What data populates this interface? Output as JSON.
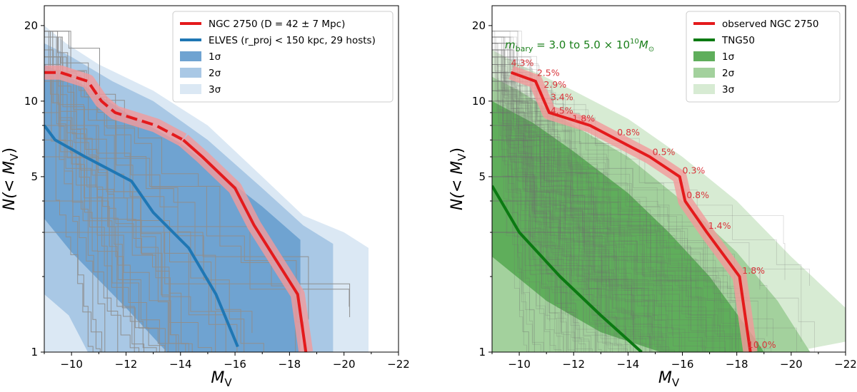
{
  "colors": {
    "red": "#e41a1c",
    "red_band": "#f29a9b",
    "blue": "#1f77b4",
    "blue1": "#6fa3d1",
    "blue2": "#a9c8e5",
    "blue3": "#dbe8f4",
    "green": "#0b7a12",
    "green1": "#5fae5b",
    "green2": "#a3d19d",
    "green3": "#d7ebd3",
    "grey": "#9a9a9a",
    "pct": "#d9343a",
    "annot_green": "#1a7f1a"
  },
  "chart_data": [
    {
      "type": "line",
      "panel": "left",
      "xlabel_main": "M",
      "xlabel_sub": "V",
      "ylabel_main": "N(< M",
      "ylabel_sub": "V",
      "ylabel_end": ")",
      "xlim": [
        -9,
        -22
      ],
      "ylim": [
        1,
        24
      ],
      "yscale": "log",
      "x_ticks": [
        -10,
        -12,
        -14,
        -16,
        -18,
        -20,
        -22
      ],
      "x_tick_labels": [
        "−10",
        "−12",
        "−14",
        "−16",
        "−18",
        "−20",
        "−22"
      ],
      "y_ticks": [
        1,
        5,
        10,
        20
      ],
      "y_tick_labels": [
        "1",
        "5",
        "10",
        "20"
      ],
      "legend": {
        "position": "top-right",
        "entries": [
          {
            "kind": "line",
            "color": "red",
            "label": "NGC 2750 (D = 42 ± 7 Mpc)"
          },
          {
            "kind": "line",
            "color": "blue",
            "label": "ELVES (r_proj < 150 kpc, 29 hosts)"
          },
          {
            "kind": "patch",
            "color": "blue1",
            "label": "1σ"
          },
          {
            "kind": "patch",
            "color": "blue2",
            "label": "2σ"
          },
          {
            "kind": "patch",
            "color": "blue3",
            "label": "3σ"
          }
        ]
      },
      "bands": [
        {
          "name": "3sigma",
          "color": "blue3",
          "upper": [
            [
              -9,
              20
            ],
            [
              -9.8,
              17
            ],
            [
              -11,
              14
            ],
            [
              -13,
              11
            ],
            [
              -15,
              8
            ],
            [
              -17,
              5
            ],
            [
              -18.5,
              3.5
            ],
            [
              -20,
              3
            ],
            [
              -20.9,
              2.6
            ],
            [
              -20.9,
              1
            ]
          ],
          "lower": [
            [
              -9,
              1
            ],
            [
              -9,
              1
            ]
          ]
        },
        {
          "name": "2sigma",
          "color": "blue2",
          "upper": [
            [
              -9,
              17
            ],
            [
              -10,
              15
            ],
            [
              -11.5,
              12
            ],
            [
              -13,
              10
            ],
            [
              -15,
              7
            ],
            [
              -17,
              4.5
            ],
            [
              -18.5,
              3.2
            ],
            [
              -19.6,
              2.7
            ],
            [
              -19.6,
              1
            ]
          ],
          "lower": [
            [
              -10.6,
              1
            ],
            [
              -9.9,
              1.4
            ],
            [
              -9,
              1.7
            ]
          ]
        },
        {
          "name": "1sigma",
          "color": "blue1",
          "upper": [
            [
              -9,
              14
            ],
            [
              -10.2,
              12
            ],
            [
              -12,
              9
            ],
            [
              -14,
              6.8
            ],
            [
              -15.6,
              5
            ],
            [
              -17,
              3.8
            ],
            [
              -18.4,
              2.8
            ],
            [
              -18.4,
              1
            ]
          ],
          "lower": [
            [
              -13.5,
              1
            ],
            [
              -12,
              1.5
            ],
            [
              -10,
              2.5
            ],
            [
              -9,
              3.4
            ]
          ]
        }
      ],
      "series": [
        {
          "name": "NGC 2750",
          "color": "red",
          "band": 0.07,
          "dashed_x": [
            -9,
            -9.6,
            -10.6,
            -11.1,
            -11.6,
            -13.1,
            -14.1
          ],
          "dashed_y": [
            13,
            13,
            12,
            10,
            9,
            8,
            7
          ],
          "solid_x": [
            -14.1,
            -14.8,
            -16.0,
            -16.7,
            -18.3,
            -18.6
          ],
          "solid_y": [
            7,
            6,
            4.5,
            3.2,
            1.7,
            1
          ]
        },
        {
          "name": "ELVES median",
          "color": "blue",
          "x": [
            -9,
            -9.4,
            -10.5,
            -12.2,
            -13,
            -14.3,
            -15.3,
            -16.1
          ],
          "y": [
            8,
            7,
            6,
            4.8,
            3.6,
            2.6,
            1.7,
            1.05
          ]
        }
      ]
    },
    {
      "type": "line",
      "panel": "right",
      "xlabel_main": "M",
      "xlabel_sub": "V",
      "ylabel_main": "N(< M",
      "ylabel_sub": "V",
      "ylabel_end": ")",
      "xlim": [
        -9,
        -22
      ],
      "ylim": [
        1,
        24
      ],
      "yscale": "log",
      "x_ticks": [
        -10,
        -12,
        -14,
        -16,
        -18,
        -20,
        -22
      ],
      "x_tick_labels": [
        "−10",
        "−12",
        "−14",
        "−16",
        "−18",
        "−20",
        "−22"
      ],
      "y_ticks": [
        1,
        5,
        10,
        20
      ],
      "y_tick_labels": [
        "1",
        "5",
        "10",
        "20"
      ],
      "annotation": {
        "m_text": "m",
        "m_sub": "bary",
        "text_mid": " = 3.0 to 5.0 × 10",
        "exp": "10",
        "msun": "M",
        "msun_sub": "⊙"
      },
      "legend": {
        "position": "top-right",
        "entries": [
          {
            "kind": "line",
            "color": "red",
            "label": "observed NGC 2750"
          },
          {
            "kind": "line",
            "color": "green",
            "label": "TNG50"
          },
          {
            "kind": "patch",
            "color": "green1",
            "label": "1σ"
          },
          {
            "kind": "patch",
            "color": "green2",
            "label": "2σ"
          },
          {
            "kind": "patch",
            "color": "green3",
            "label": "3σ"
          }
        ]
      },
      "bands": [
        {
          "name": "3sigma",
          "color": "green3",
          "upper": [
            [
              -9,
              16
            ],
            [
              -10,
              14
            ],
            [
              -12,
              11
            ],
            [
              -14,
              8.5
            ],
            [
              -16,
              6
            ],
            [
              -18,
              4
            ],
            [
              -20,
              2.4
            ],
            [
              -22,
              1.5
            ]
          ],
          "lower": [
            [
              -22,
              1.1
            ],
            [
              -20,
              1
            ],
            [
              -9,
              1
            ]
          ]
        },
        {
          "name": "2sigma",
          "color": "green2",
          "upper": [
            [
              -9,
              12.5
            ],
            [
              -10,
              11
            ],
            [
              -12,
              8
            ],
            [
              -14,
              6
            ],
            [
              -16,
              4
            ],
            [
              -18,
              2.5
            ],
            [
              -19.5,
              1.6
            ],
            [
              -20.7,
              1
            ]
          ],
          "lower": [
            [
              -9,
              1
            ]
          ]
        },
        {
          "name": "1sigma",
          "color": "green1",
          "upper": [
            [
              -9,
              10
            ],
            [
              -10.5,
              8.2
            ],
            [
              -12,
              6.3
            ],
            [
              -14,
              4.3
            ],
            [
              -15.5,
              3
            ],
            [
              -17,
              2
            ],
            [
              -18.5,
              1.2
            ],
            [
              -19,
              1
            ]
          ],
          "lower": [
            [
              -15.2,
              1
            ],
            [
              -13,
              1.2
            ],
            [
              -11,
              1.6
            ],
            [
              -9,
              2.4
            ]
          ]
        }
      ],
      "series": [
        {
          "name": "observed NGC 2750",
          "color": "red",
          "band": 0.07,
          "x": [
            -9.7,
            -10.6,
            -11.1,
            -12.6,
            -14.8,
            -15.9,
            -16.1,
            -16.9,
            -18.1,
            -18.5
          ],
          "y": [
            13,
            12,
            9,
            8,
            6,
            5,
            4,
            3,
            2,
            1
          ]
        },
        {
          "name": "TNG50 median",
          "color": "green",
          "x": [
            -9,
            -10,
            -11.5,
            -13,
            -14.5
          ],
          "y": [
            4.6,
            3,
            2,
            1.4,
            1
          ]
        }
      ],
      "percent_labels": [
        {
          "text": "4.3%",
          "x": -9.7,
          "y": 13.8
        },
        {
          "text": "2.5%",
          "x": -10.65,
          "y": 12.6
        },
        {
          "text": "2.9%",
          "x": -10.9,
          "y": 11.3
        },
        {
          "text": "3.4%",
          "x": -11.15,
          "y": 10.1
        },
        {
          "text": "4.5%",
          "x": -11.15,
          "y": 8.9
        },
        {
          "text": "1.8%",
          "x": -11.95,
          "y": 8.3
        },
        {
          "text": "0.8%",
          "x": -13.6,
          "y": 7.3
        },
        {
          "text": "0.5%",
          "x": -14.9,
          "y": 6.1
        },
        {
          "text": "0.3%",
          "x": -16.0,
          "y": 5.15
        },
        {
          "text": "0.8%",
          "x": -16.15,
          "y": 4.1
        },
        {
          "text": "1.4%",
          "x": -16.95,
          "y": 3.1
        },
        {
          "text": "1.8%",
          "x": -18.2,
          "y": 2.05
        },
        {
          "text": "10.0%",
          "x": -18.4,
          "y": 1.04
        }
      ]
    }
  ]
}
